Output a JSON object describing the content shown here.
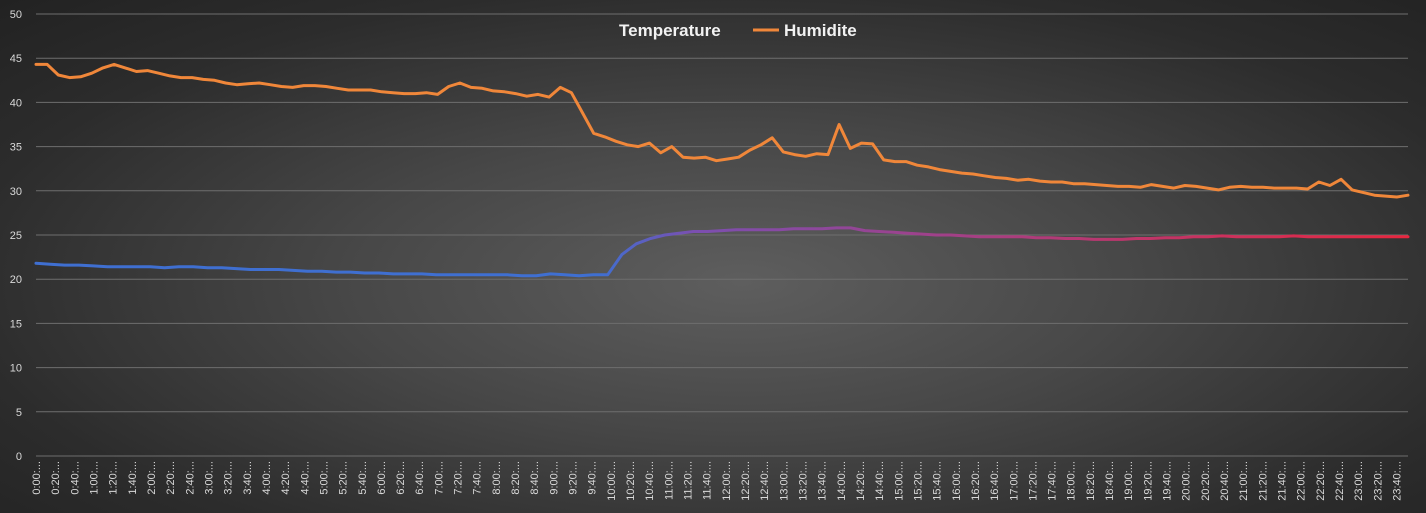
{
  "chart_data": {
    "type": "line",
    "title": "",
    "xlabel": "",
    "ylabel": "",
    "ylim": [
      0,
      50
    ],
    "yticks": [
      0,
      5,
      10,
      15,
      20,
      25,
      30,
      35,
      40,
      45,
      50
    ],
    "grid": true,
    "legend_position": "top-center",
    "x_tick_labels": [
      "0:00:...",
      "0:20:...",
      "0:40:...",
      "1:00:...",
      "1:20:...",
      "1:40:...",
      "2:00:...",
      "2:20:...",
      "2:40:...",
      "3:00:...",
      "3:20:...",
      "3:40:...",
      "4:00:...",
      "4:20:...",
      "4:40:...",
      "5:00:...",
      "5:20:...",
      "5:40:...",
      "6:00:...",
      "6:20:...",
      "6:40:...",
      "7:00:...",
      "7:20:...",
      "7:40:...",
      "8:00:...",
      "8:20:...",
      "8:40:...",
      "9:00:...",
      "9:20:...",
      "9:40:...",
      "10:00:...",
      "10:20:...",
      "10:40:...",
      "11:00:...",
      "11:20:...",
      "11:40:...",
      "12:00:...",
      "12:20:...",
      "12:40:...",
      "13:00:...",
      "13:20:...",
      "13:40:...",
      "14:00:...",
      "14:20:...",
      "14:40:...",
      "15:00:...",
      "15:20:...",
      "15:40:...",
      "16:00:...",
      "16:20:...",
      "16:40:...",
      "17:00:...",
      "17:20:...",
      "17:40:...",
      "18:00:...",
      "18:20:...",
      "18:40:...",
      "19:00:...",
      "19:20:...",
      "19:40:...",
      "20:00:...",
      "20:20:...",
      "20:40:...",
      "21:00:...",
      "21:20:...",
      "21:40:...",
      "22:00:...",
      "22:20:...",
      "22:40:...",
      "23:00:...",
      "23:20:...",
      "23:40:..."
    ],
    "series": [
      {
        "name": "Temperature",
        "color_start": "#7b4fb0",
        "color_mid": "#3f6fd1",
        "color_end": "#e8263f",
        "values": [
          21.8,
          21.7,
          21.6,
          21.6,
          21.5,
          21.4,
          21.4,
          21.4,
          21.4,
          21.3,
          21.4,
          21.4,
          21.3,
          21.3,
          21.2,
          21.1,
          21.1,
          21.1,
          21.0,
          20.9,
          20.9,
          20.8,
          20.8,
          20.7,
          20.7,
          20.6,
          20.6,
          20.6,
          20.5,
          20.5,
          20.5,
          20.5,
          20.5,
          20.5,
          20.4,
          20.4,
          20.6,
          20.5,
          20.4,
          20.5,
          20.5,
          22.8,
          24.0,
          24.6,
          25.0,
          25.2,
          25.4,
          25.4,
          25.5,
          25.6,
          25.6,
          25.6,
          25.6,
          25.7,
          25.7,
          25.7,
          25.8,
          25.8,
          25.5,
          25.4,
          25.3,
          25.2,
          25.1,
          25.0,
          25.0,
          24.9,
          24.8,
          24.8,
          24.8,
          24.8,
          24.7,
          24.7,
          24.6,
          24.6,
          24.5,
          24.5,
          24.5,
          24.6,
          24.6,
          24.7,
          24.7,
          24.8,
          24.8,
          24.9,
          24.8,
          24.8,
          24.8,
          24.8,
          24.9,
          24.8,
          24.8,
          24.8,
          24.8,
          24.8,
          24.8,
          24.8,
          24.8
        ]
      },
      {
        "name": "Humidite",
        "color": "#f0873a",
        "values": [
          44.3,
          44.3,
          43.1,
          42.8,
          42.9,
          43.3,
          43.9,
          44.3,
          43.9,
          43.5,
          43.6,
          43.3,
          43.0,
          42.8,
          42.8,
          42.6,
          42.5,
          42.2,
          42.0,
          42.1,
          42.2,
          42.0,
          41.8,
          41.7,
          41.9,
          41.9,
          41.8,
          41.6,
          41.4,
          41.4,
          41.4,
          41.2,
          41.1,
          41.0,
          41.0,
          41.1,
          40.9,
          41.8,
          42.2,
          41.7,
          41.6,
          41.3,
          41.2,
          41.0,
          40.7,
          40.9,
          40.6,
          41.7,
          41.1,
          38.8,
          36.5,
          36.1,
          35.6,
          35.2,
          35.0,
          35.4,
          34.3,
          35.0,
          33.8,
          33.7,
          33.8,
          33.4,
          33.6,
          33.8,
          34.6,
          35.2,
          36.0,
          34.4,
          34.1,
          33.9,
          34.2,
          34.1,
          37.5,
          34.8,
          35.4,
          35.3,
          33.5,
          33.3,
          33.3,
          32.9,
          32.7,
          32.4,
          32.2,
          32.0,
          31.9,
          31.7,
          31.5,
          31.4,
          31.2,
          31.3,
          31.1,
          31.0,
          31.0,
          30.8,
          30.8,
          30.7,
          30.6,
          30.5,
          30.5,
          30.4,
          30.7,
          30.5,
          30.3,
          30.6,
          30.5,
          30.3,
          30.1,
          30.4,
          30.5,
          30.4,
          30.4,
          30.3,
          30.3,
          30.3,
          30.2,
          31.0,
          30.6,
          31.3,
          30.1,
          29.8,
          29.5,
          29.4,
          29.3,
          29.5
        ]
      }
    ]
  }
}
